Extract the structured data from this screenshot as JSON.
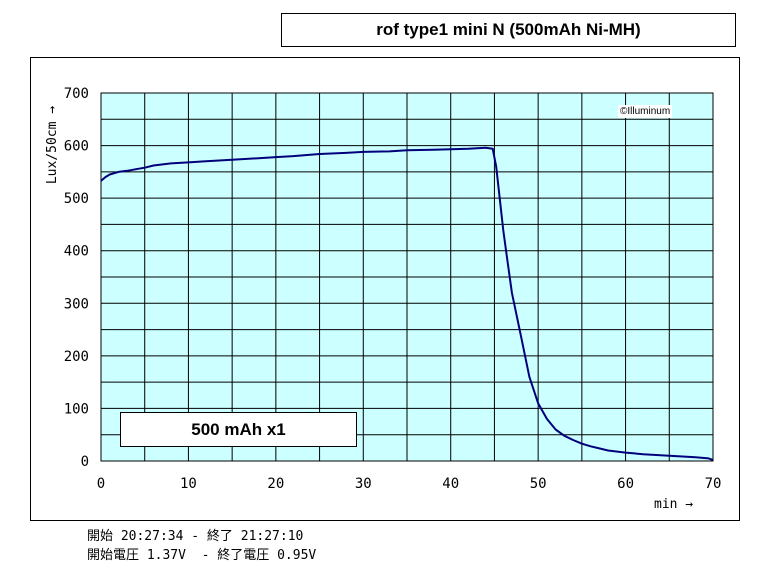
{
  "title": "rof type1 mini N (500mAh Ni-MH)",
  "legend_label": "500 mAh x1",
  "copyright": "©Illuminum",
  "footer": {
    "line1": "開始 20:27:34 - 終了 21:27:10",
    "line2": "開始電圧 1.37V  - 終了電圧 0.95V"
  },
  "colors": {
    "plot_bg": "#ccffff",
    "line": "#00007b",
    "grid": "#000000"
  },
  "chart_data": {
    "type": "line",
    "title": "rof type1 mini N (500mAh Ni-MH)",
    "xlabel": "min →",
    "ylabel": "Lux/50cm →",
    "xlim": [
      0,
      70
    ],
    "ylim": [
      0,
      700
    ],
    "xticks": [
      0,
      10,
      20,
      30,
      40,
      50,
      60,
      70
    ],
    "yticks": [
      0,
      100,
      200,
      300,
      400,
      500,
      600,
      700
    ],
    "grid": true,
    "series": [
      {
        "name": "500 mAh x1",
        "x": [
          0,
          0.5,
          1,
          2,
          3,
          4,
          5,
          6,
          8,
          10,
          12,
          15,
          18,
          20,
          22,
          25,
          28,
          30,
          33,
          35,
          38,
          40,
          42,
          43,
          44,
          44.8,
          45.2,
          45.6,
          46,
          46.5,
          47,
          48,
          49,
          50,
          51,
          52,
          53,
          54,
          55,
          56,
          57,
          58,
          60,
          62,
          65,
          68,
          69.5,
          70
        ],
        "values": [
          533,
          540,
          545,
          550,
          552,
          555,
          558,
          562,
          566,
          568,
          570,
          573,
          576,
          578,
          580,
          584,
          586,
          588,
          589,
          591,
          592,
          593,
          594,
          595,
          596,
          594,
          560,
          500,
          440,
          380,
          320,
          240,
          160,
          110,
          80,
          60,
          48,
          40,
          33,
          28,
          24,
          20,
          16,
          13,
          10,
          7,
          5,
          2
        ]
      }
    ]
  }
}
